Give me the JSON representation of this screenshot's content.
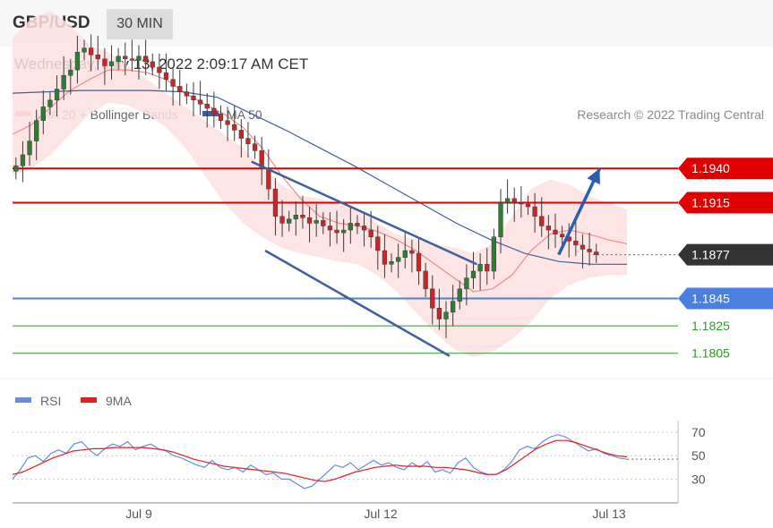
{
  "header": {
    "symbol": "GBP/USD",
    "timeframe": "30 MIN"
  },
  "timestamp": "Wednesday, July 13, 2022 2:09:17 AM CET",
  "copyright": "Research © 2022 Trading Central",
  "colors": {
    "ma20": "#f08a8a",
    "bands_fill": "#fde0e0",
    "ma50": "#3f5f9e",
    "candle_up": "#2e7d32",
    "candle_down": "#c62828",
    "resistance": "#e00000",
    "support": "#4a7fe0",
    "support_green": "#2e9a2e",
    "current": "#333333",
    "rsi": "#6a8be0",
    "rsi_ma": "#e02020",
    "arrow": "#2a5fb0"
  },
  "chart_data": [
    {
      "type": "candlestick",
      "title": "GBP/USD",
      "legend": [
        {
          "name": "MA 20 + Bollinger Bands",
          "color": "#f08a8a"
        },
        {
          "name": "MA 50",
          "color": "#3f5f9e"
        }
      ],
      "legend_position": "top-left",
      "x_ticks": [
        "Jul 9",
        "Jul 12",
        "Jul 13"
      ],
      "ylim": [
        1.1795,
        1.1965
      ],
      "levels": [
        {
          "price": 1.194,
          "label": "1.1940",
          "kind": "resistance",
          "color": "#e00000"
        },
        {
          "price": 1.1915,
          "label": "1.1915",
          "kind": "resistance",
          "color": "#e00000"
        },
        {
          "price": 1.1877,
          "label": "1.1877",
          "kind": "current",
          "color": "#333333"
        },
        {
          "price": 1.1845,
          "label": "1.1845",
          "kind": "support",
          "color": "#4a7fe0"
        },
        {
          "price": 1.1825,
          "label": "1.1825",
          "kind": "support",
          "color": "#2e9a2e"
        },
        {
          "price": 1.1805,
          "label": "1.1805",
          "kind": "support",
          "color": "#2e9a2e"
        }
      ],
      "closes": [
        1.1942,
        1.195,
        1.196,
        1.1975,
        1.1985,
        1.199,
        1.1998,
        1.2008,
        1.2012,
        1.2025,
        1.2028,
        1.2023,
        1.202,
        1.2015,
        1.2018,
        1.2022,
        1.202,
        1.2019,
        1.2022,
        1.2018,
        1.2014,
        1.201,
        1.2005,
        1.2,
        1.1996,
        1.1993,
        1.199,
        1.1987,
        1.1984,
        1.198,
        1.1975,
        1.1972,
        1.1968,
        1.1962,
        1.1958,
        1.1953,
        1.194,
        1.1925,
        1.1905,
        1.19,
        1.1903,
        1.1906,
        1.1904,
        1.19,
        1.1902,
        1.1898,
        1.1895,
        1.1893,
        1.1895,
        1.19,
        1.1898,
        1.1895,
        1.189,
        1.188,
        1.187,
        1.1872,
        1.1875,
        1.188,
        1.1878,
        1.1865,
        1.1852,
        1.1838,
        1.183,
        1.1835,
        1.1843,
        1.1852,
        1.186,
        1.1865,
        1.187,
        1.1865,
        1.189,
        1.1915,
        1.1918,
        1.1915,
        1.1914,
        1.1912,
        1.1905,
        1.1898,
        1.1895,
        1.1892,
        1.189,
        1.1887,
        1.1884,
        1.1881,
        1.1879,
        1.1877
      ],
      "xlim": [
        0,
        90
      ],
      "ma50": [
        1.1995,
        1.1996,
        1.1997,
        1.1997,
        1.1997,
        1.1996,
        1.1992,
        1.198,
        1.1968,
        1.1955,
        1.1942,
        1.1928,
        1.1914,
        1.19,
        1.1888,
        1.1878,
        1.1872,
        1.187,
        1.187
      ],
      "ma20": [
        1.1965,
        1.1972,
        1.1985,
        1.1997,
        1.2005,
        1.2012,
        1.2012,
        1.201,
        1.2005,
        1.1995,
        1.1987,
        1.198,
        1.197,
        1.1955,
        1.1935,
        1.1918,
        1.1905,
        1.19,
        1.1898,
        1.1894,
        1.1888,
        1.188,
        1.187,
        1.186,
        1.185,
        1.1852,
        1.1862,
        1.188,
        1.1892,
        1.1895,
        1.1892,
        1.1888,
        1.1885
      ],
      "bands_upper": [
        1.2035,
        1.205,
        1.2055,
        1.2045,
        1.203,
        1.2025,
        1.2015,
        1.2005,
        1.1995,
        1.1985,
        1.1975,
        1.1965,
        1.1955,
        1.194,
        1.1928,
        1.192,
        1.1918,
        1.1915,
        1.191,
        1.19,
        1.1892,
        1.1888,
        1.1885,
        1.1882,
        1.1878,
        1.1885,
        1.1905,
        1.1925,
        1.1932,
        1.1928,
        1.192,
        1.1915,
        1.191
      ],
      "bands_lower": [
        1.1935,
        1.194,
        1.195,
        1.1965,
        1.198,
        1.1988,
        1.1986,
        1.198,
        1.197,
        1.1955,
        1.1935,
        1.1915,
        1.19,
        1.189,
        1.1882,
        1.1878,
        1.1875,
        1.1872,
        1.187,
        1.1862,
        1.185,
        1.1835,
        1.182,
        1.1808,
        1.1802,
        1.1806,
        1.1815,
        1.1828,
        1.1845,
        1.1855,
        1.186,
        1.1862,
        1.1862
      ],
      "channel_upper": [
        [
          35,
          1.1945
        ],
        [
          68,
          1.187
        ]
      ],
      "channel_lower": [
        [
          37,
          1.188
        ],
        [
          64,
          1.1803
        ]
      ],
      "projection_arrow": [
        [
          80,
          1.1877
        ],
        [
          86,
          1.194
        ]
      ]
    },
    {
      "type": "line",
      "title": "RSI",
      "legend": [
        {
          "name": "RSI",
          "color": "#6a8be0"
        },
        {
          "name": "9MA",
          "color": "#e02020"
        }
      ],
      "y_ticks": [
        "70",
        "50",
        "30"
      ],
      "ylim": [
        15,
        80
      ],
      "rsi": [
        30,
        38,
        48,
        50,
        45,
        52,
        55,
        52,
        60,
        62,
        55,
        50,
        56,
        60,
        58,
        62,
        55,
        58,
        60,
        56,
        54,
        50,
        48,
        45,
        42,
        40,
        46,
        40,
        38,
        40,
        36,
        42,
        38,
        34,
        35,
        30,
        30,
        26,
        22,
        24,
        30,
        36,
        42,
        40,
        44,
        38,
        42,
        46,
        42,
        44,
        40,
        38,
        44,
        40,
        45,
        36,
        38,
        35,
        44,
        48,
        40,
        36,
        34,
        34,
        38,
        45,
        55,
        58,
        56,
        62,
        66,
        68,
        66,
        62,
        58,
        54,
        56,
        52,
        50,
        48,
        47
      ],
      "rsi_ma": [
        34,
        36,
        40,
        44,
        48,
        51,
        54,
        55,
        56,
        56,
        57,
        57,
        57,
        57,
        56,
        55,
        53,
        50,
        47,
        45,
        43,
        41,
        40,
        39,
        38,
        37,
        36,
        35,
        33,
        31,
        29,
        28,
        30,
        33,
        36,
        38,
        40,
        41,
        42,
        41,
        41,
        41,
        40,
        40,
        39,
        38,
        36,
        34,
        34,
        38,
        44,
        50,
        56,
        60,
        63,
        63,
        61,
        58,
        55,
        52,
        50,
        49
      ]
    }
  ]
}
